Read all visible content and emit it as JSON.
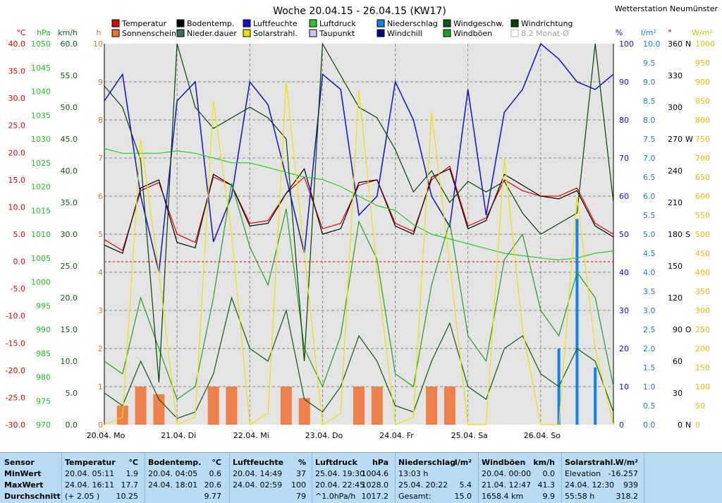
{
  "title": "Woche 20.04.15 - 26.04.15 (KW17)",
  "station": "Wetterstation Neumünster",
  "legend": [
    {
      "label": "Temperatur",
      "color": "#e00000"
    },
    {
      "label": "Sonnenschein",
      "color": "#f07030"
    },
    {
      "label": "Bodentemp.",
      "color": "#000000"
    },
    {
      "label": "Nieder.dauer",
      "color": "#406a6a"
    },
    {
      "label": "Luftfeuchte",
      "color": "#1010d0"
    },
    {
      "label": "Solarstrahl.",
      "color": "#f0e000"
    },
    {
      "label": "Luftdruck",
      "color": "#20d020"
    },
    {
      "label": "Taupunkt",
      "color": "#c8c8f0"
    },
    {
      "label": "Niederschlag",
      "color": "#1080f0"
    },
    {
      "label": "Windchill",
      "color": "#000090"
    },
    {
      "label": "Windgeschw.",
      "color": "#105a10"
    },
    {
      "label": "Windböen",
      "color": "#20a020"
    },
    {
      "label": "Windrichtung",
      "color": "#004400"
    },
    {
      "label": "8.2 Monat-Ø",
      "color": "#b0b0b0"
    }
  ],
  "axis_units": {
    "temp": "°C",
    "hpa": "hPa",
    "kmh": "km/h",
    "h": "h",
    "pct": "%",
    "lm2": "l/m²",
    "deg": "°",
    "wm2": "W/m²"
  },
  "axes": {
    "temp": [
      "40.0",
      "35.0",
      "30.0",
      "25.0",
      "20.0",
      "15.0",
      "10.0",
      "5.0",
      "0.0",
      "-5.0",
      "-10.0",
      "-15.0",
      "-20.0",
      "-25.0",
      "-30.0"
    ],
    "hpa": [
      "1050",
      "1045",
      "1040",
      "1035",
      "1030",
      "1025",
      "1020",
      "1015",
      "1010",
      "1005",
      "1000",
      "995",
      "990",
      "985",
      "980",
      "975",
      "970"
    ],
    "kmh": [
      "60.0",
      "55.0",
      "50.0",
      "45.0",
      "40.0",
      "35.0",
      "30.0",
      "25.0",
      "20.0",
      "15.0",
      "10.0",
      "5.0",
      "0.0"
    ],
    "h": [
      "10",
      "9",
      "8",
      "7",
      "6",
      "5",
      "4",
      "3",
      "2",
      "1",
      "0"
    ],
    "pct": [
      "100",
      "90",
      "80",
      "70",
      "60",
      "50",
      "40",
      "30",
      "20",
      "10",
      "0"
    ],
    "lm2": [
      "10.0",
      "9.5",
      "9.0",
      "8.5",
      "8.0",
      "7.5",
      "7.0",
      "6.5",
      "6.0",
      "5.5",
      "5.0",
      "4.5",
      "4.0",
      "3.5",
      "3.0",
      "2.5",
      "2.0",
      "1.5",
      "1.0",
      "0.5",
      "0.0"
    ],
    "deg": [
      {
        "v": "360",
        "d": "N"
      },
      {
        "v": "330",
        "d": ""
      },
      {
        "v": "300",
        "d": ""
      },
      {
        "v": "270",
        "d": "W"
      },
      {
        "v": "240",
        "d": ""
      },
      {
        "v": "210",
        "d": ""
      },
      {
        "v": "180",
        "d": "S"
      },
      {
        "v": "150",
        "d": ""
      },
      {
        "v": "120",
        "d": ""
      },
      {
        "v": "90",
        "d": "O"
      },
      {
        "v": "60",
        "d": ""
      },
      {
        "v": "30",
        "d": ""
      },
      {
        "v": "0",
        "d": "N"
      }
    ],
    "wm2": [
      "1000",
      "950",
      "900",
      "850",
      "800",
      "750",
      "700",
      "650",
      "600",
      "550",
      "500",
      "450",
      "400",
      "350",
      "300",
      "250",
      "200",
      "150",
      "100",
      "50",
      "0"
    ]
  },
  "days": [
    "20.04.  Mo",
    "21.04.  Di",
    "22.04.  Mi",
    "23.04.  Do",
    "24.04.  Fr",
    "25.04.  Sa",
    "26.04.  So"
  ],
  "chart_data": {
    "type": "line",
    "title": "Woche 20.04.15 - 26.04.15 (KW17)",
    "x_label": "",
    "x_range": [
      "20.04.15 00:00",
      "27.04.15 00:00"
    ],
    "x_hours": [
      0,
      6,
      12,
      18,
      24,
      30,
      36,
      42,
      48,
      54,
      60,
      66,
      72,
      78,
      84,
      90,
      96,
      102,
      108,
      114,
      120,
      126,
      132,
      138,
      144,
      150,
      156,
      162,
      168
    ],
    "series": [
      {
        "name": "Temperatur",
        "unit": "°C",
        "color": "#e00000",
        "values": [
          4.0,
          2.0,
          13.0,
          14.5,
          5.0,
          3.5,
          15.5,
          14.0,
          7.0,
          7.5,
          12.5,
          15.5,
          6.0,
          7.0,
          14.0,
          15.0,
          7.0,
          5.5,
          15.0,
          17.5,
          6.5,
          8.0,
          15.0,
          13.0,
          12.0,
          12.0,
          13.5,
          7.0,
          5.0
        ]
      },
      {
        "name": "Bodentemp.",
        "unit": "°C",
        "color": "#000000",
        "values": [
          3.0,
          1.5,
          13.5,
          15.0,
          3.5,
          2.5,
          16.0,
          14.0,
          6.5,
          7.0,
          12.5,
          17.0,
          5.0,
          6.0,
          14.5,
          15.0,
          6.5,
          5.0,
          15.5,
          17.0,
          6.0,
          7.5,
          16.0,
          14.0,
          12.0,
          11.5,
          13.0,
          6.5,
          4.5
        ]
      },
      {
        "name": "Luftfeuchte",
        "unit": "%",
        "color": "#1010d0",
        "values": [
          85,
          92,
          60,
          40,
          85,
          90,
          48,
          60,
          90,
          84,
          65,
          45,
          92,
          88,
          55,
          60,
          90,
          80,
          60,
          52,
          88,
          55,
          82,
          88,
          100,
          96,
          90,
          88,
          92
        ]
      },
      {
        "name": "Luftdruck",
        "unit": "hPa",
        "color": "#20d020",
        "values": [
          1028,
          1027,
          1027,
          1027,
          1027.5,
          1027,
          1026,
          1025,
          1025,
          1024,
          1023,
          1022,
          1021.5,
          1020,
          1018,
          1016,
          1015,
          1012,
          1010,
          1009,
          1008,
          1007,
          1006,
          1005.5,
          1005,
          1004.6,
          1005,
          1006,
          1006.5
        ]
      },
      {
        "name": "Windgeschw.",
        "unit": "km/h",
        "color": "#105a10",
        "values": [
          5,
          3,
          10,
          4,
          1,
          2,
          8,
          20,
          12,
          10,
          18,
          4,
          2,
          6,
          14,
          10,
          3,
          2,
          10,
          16,
          6,
          4,
          12,
          14,
          8,
          6,
          12,
          10,
          2
        ]
      },
      {
        "name": "Windböen",
        "unit": "km/h",
        "color": "#20a020",
        "values": [
          10,
          8,
          20,
          12,
          4,
          6,
          20,
          38,
          28,
          22,
          34,
          12,
          6,
          14,
          32,
          26,
          8,
          6,
          22,
          32,
          14,
          10,
          26,
          30,
          18,
          14,
          24,
          20,
          6
        ]
      },
      {
        "name": "Windrichtung",
        "unit": "°",
        "color": "#004400",
        "values": [
          320,
          300,
          250,
          40,
          360,
          300,
          280,
          290,
          300,
          290,
          270,
          60,
          360,
          330,
          300,
          290,
          260,
          220,
          240,
          210,
          230,
          220,
          230,
          200,
          180,
          190,
          200,
          360,
          210
        ]
      },
      {
        "name": "Solarstrahl.",
        "unit": "W/m²",
        "color": "#f0e000",
        "values": [
          0,
          20,
          750,
          400,
          0,
          20,
          850,
          500,
          0,
          30,
          900,
          450,
          0,
          30,
          880,
          400,
          0,
          20,
          820,
          420,
          0,
          0,
          700,
          250,
          0,
          0,
          600,
          200,
          0
        ]
      },
      {
        "name": "Niederschlag",
        "unit": "l/m²",
        "color": "#1080f0",
        "values": [
          0,
          0,
          0,
          0,
          0,
          0,
          0,
          0,
          0,
          0,
          0,
          0,
          0,
          0,
          0,
          0,
          0,
          0,
          0,
          0,
          0,
          0,
          0,
          0,
          0,
          2,
          5.4,
          1.5,
          0
        ]
      },
      {
        "name": "Sonnenschein",
        "unit": "h",
        "color": "#f07030",
        "values": [
          0,
          0.5,
          1,
          0.8,
          0,
          0,
          1,
          1,
          0,
          0,
          1,
          0.7,
          0,
          0,
          1,
          1,
          0,
          0,
          1,
          1,
          0,
          0,
          0,
          0,
          0,
          0,
          0,
          0,
          0
        ]
      }
    ],
    "ylim": {
      "temp": [
        -30,
        40
      ],
      "hpa": [
        970,
        1050
      ],
      "kmh": [
        0,
        60
      ],
      "h": [
        0,
        10
      ],
      "pct": [
        0,
        100
      ],
      "lm2": [
        0,
        10
      ],
      "deg": [
        0,
        360
      ],
      "wm2": [
        0,
        1000
      ]
    },
    "grid": true,
    "legend_position": "top"
  },
  "stats": {
    "rows": [
      "Sensor",
      "MinWert",
      "MaxWert",
      "Durchschnitt"
    ],
    "columns": [
      {
        "name": "Temperatur",
        "unit": "°C",
        "min": [
          "20.04.  05:11",
          "1.9"
        ],
        "max": [
          "24.04.  16:11",
          "17.7"
        ],
        "avg": [
          "(+ 2.05 )",
          "10.25"
        ]
      },
      {
        "name": "Bodentemp.",
        "unit": "°C",
        "min": [
          "20.04.  04:05",
          "0.6"
        ],
        "max": [
          "24.04.  18:01",
          "20.6"
        ],
        "avg": [
          "",
          "9.77"
        ]
      },
      {
        "name": "Luftfeuchte",
        "unit": "%",
        "min": [
          "20.04.  14:49",
          "37"
        ],
        "max": [
          "24.04.  02:59",
          "100"
        ],
        "avg": [
          "",
          "79"
        ]
      },
      {
        "name": "Luftdruck",
        "unit": "hPa",
        "min": [
          "25.04.  19:30",
          "1004.6"
        ],
        "max": [
          "20.04.  22:45",
          "1028.0"
        ],
        "avg": [
          "^1.0hPa/h",
          "1017.2"
        ]
      },
      {
        "name": "Niederschlag",
        "unit": "l/m²",
        "min": [
          "13:03 h",
          ""
        ],
        "max": [
          "25.04.  20:22",
          "5.4"
        ],
        "avg": [
          "Gesamt:",
          "15.0"
        ]
      },
      {
        "name": "Windböen",
        "unit": "km/h",
        "min": [
          "20.04.  00:00",
          "0.0"
        ],
        "max": [
          "21.04.  12:47",
          "41.3"
        ],
        "avg": [
          "1658.4 km",
          "9.9"
        ]
      },
      {
        "name": "Solarstrahl.",
        "unit": "W/m²",
        "min": [
          "Elevation",
          "-16.257"
        ],
        "max": [
          "24.04.  12:30",
          "939"
        ],
        "avg": [
          "55:58 h",
          "318.2"
        ]
      }
    ]
  }
}
